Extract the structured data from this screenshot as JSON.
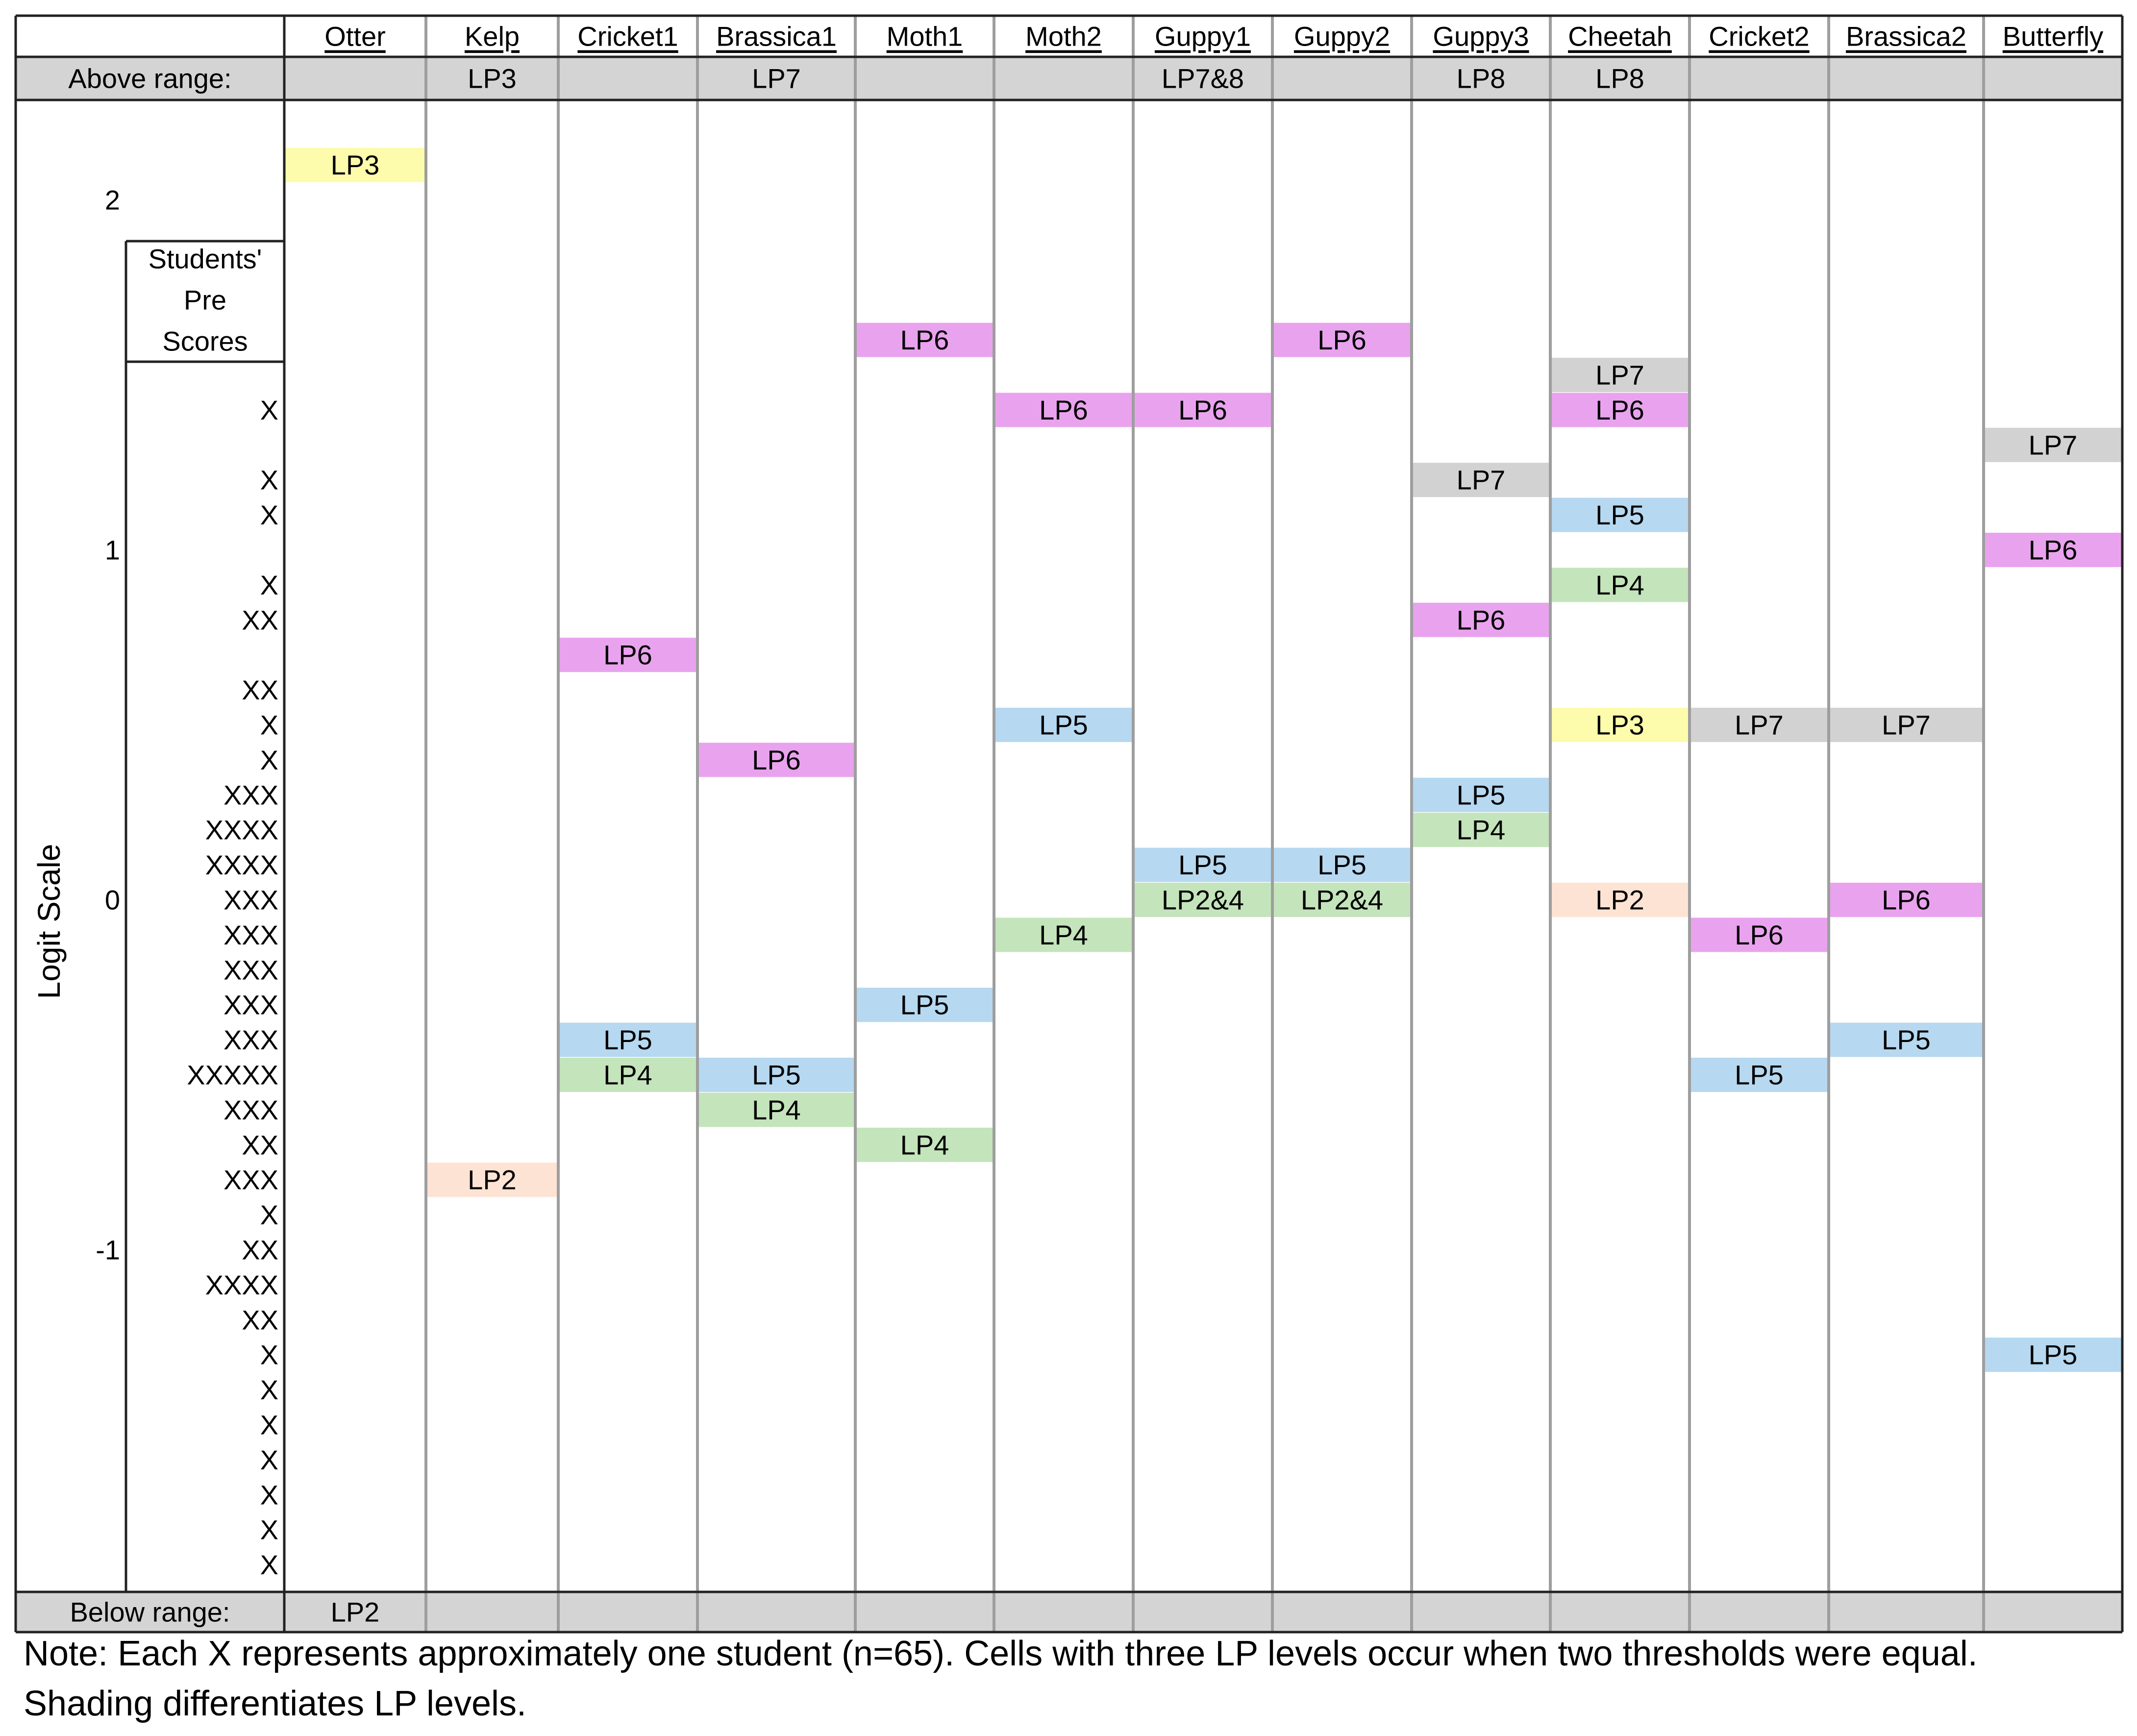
{
  "chart_data": {
    "type": "table",
    "yaxis_label": "Logit Scale",
    "ytick_values": [
      2,
      1,
      0,
      -1
    ],
    "ytick_labels": [
      "2",
      "1",
      "0",
      "-1"
    ],
    "items": [
      "Otter",
      "Kelp",
      "Cricket1",
      "Brassica1",
      "Moth1",
      "Moth2",
      "Guppy1",
      "Guppy2",
      "Guppy3",
      "Cheetah",
      "Cricket2",
      "Brassica2",
      "Butterfly"
    ],
    "above_label": "Above range:",
    "above_range": [
      "",
      "LP3",
      "",
      "LP7",
      "",
      "",
      "LP7&8",
      "",
      "LP8",
      "LP8",
      "",
      "",
      ""
    ],
    "below_label": "Below range:",
    "below_range": [
      "LP2",
      "",
      "",
      "",
      "",
      "",
      "",
      "",
      "",
      "",
      "",
      "",
      ""
    ],
    "students_label_lines": [
      "Students'",
      "Pre",
      "Scores"
    ],
    "students": [
      {
        "logit": 1.4,
        "marks": "X"
      },
      {
        "logit": 1.2,
        "marks": "X"
      },
      {
        "logit": 1.1,
        "marks": "X"
      },
      {
        "logit": 0.9,
        "marks": "X"
      },
      {
        "logit": 0.8,
        "marks": "XX"
      },
      {
        "logit": 0.6,
        "marks": "XX"
      },
      {
        "logit": 0.5,
        "marks": "X"
      },
      {
        "logit": 0.4,
        "marks": "X"
      },
      {
        "logit": 0.3,
        "marks": "XXX"
      },
      {
        "logit": 0.2,
        "marks": "XXXX"
      },
      {
        "logit": 0.1,
        "marks": "XXXX"
      },
      {
        "logit": 0.0,
        "marks": "XXX"
      },
      {
        "logit": -0.1,
        "marks": "XXX"
      },
      {
        "logit": -0.2,
        "marks": "XXX"
      },
      {
        "logit": -0.3,
        "marks": "XXX"
      },
      {
        "logit": -0.4,
        "marks": "XXX"
      },
      {
        "logit": -0.5,
        "marks": "XXXXX"
      },
      {
        "logit": -0.6,
        "marks": "XXX"
      },
      {
        "logit": -0.7,
        "marks": "XX"
      },
      {
        "logit": -0.8,
        "marks": "XXX"
      },
      {
        "logit": -0.9,
        "marks": "X"
      },
      {
        "logit": -1.0,
        "marks": "XX"
      },
      {
        "logit": -1.1,
        "marks": "XXXX"
      },
      {
        "logit": -1.2,
        "marks": "XX"
      },
      {
        "logit": -1.3,
        "marks": "X"
      },
      {
        "logit": -1.4,
        "marks": "X"
      },
      {
        "logit": -1.5,
        "marks": "X"
      },
      {
        "logit": -1.6,
        "marks": "X"
      },
      {
        "logit": -1.7,
        "marks": "X"
      },
      {
        "logit": -1.8,
        "marks": "X"
      },
      {
        "logit": -1.9,
        "marks": "X"
      }
    ],
    "thresholds": [
      {
        "item": "Otter",
        "label": "LP3",
        "logit": 2.1
      },
      {
        "item": "Kelp",
        "label": "LP2",
        "logit": -0.8
      },
      {
        "item": "Cricket1",
        "label": "LP6",
        "logit": 0.7
      },
      {
        "item": "Cricket1",
        "label": "LP5",
        "logit": -0.4
      },
      {
        "item": "Cricket1",
        "label": "LP4",
        "logit": -0.5
      },
      {
        "item": "Brassica1",
        "label": "LP6",
        "logit": 0.4
      },
      {
        "item": "Brassica1",
        "label": "LP5",
        "logit": -0.5
      },
      {
        "item": "Brassica1",
        "label": "LP4",
        "logit": -0.6
      },
      {
        "item": "Moth1",
        "label": "LP6",
        "logit": 1.6
      },
      {
        "item": "Moth1",
        "label": "LP5",
        "logit": -0.3
      },
      {
        "item": "Moth1",
        "label": "LP4",
        "logit": -0.7
      },
      {
        "item": "Moth2",
        "label": "LP6",
        "logit": 1.4
      },
      {
        "item": "Moth2",
        "label": "LP5",
        "logit": 0.5
      },
      {
        "item": "Moth2",
        "label": "LP4",
        "logit": -0.1
      },
      {
        "item": "Guppy1",
        "label": "LP6",
        "logit": 1.4
      },
      {
        "item": "Guppy1",
        "label": "LP5",
        "logit": 0.1
      },
      {
        "item": "Guppy1",
        "label": "LP2&4",
        "logit": 0.0
      },
      {
        "item": "Guppy2",
        "label": "LP6",
        "logit": 1.6
      },
      {
        "item": "Guppy2",
        "label": "LP5",
        "logit": 0.1
      },
      {
        "item": "Guppy2",
        "label": "LP2&4",
        "logit": 0.0
      },
      {
        "item": "Guppy3",
        "label": "LP7",
        "logit": 1.2
      },
      {
        "item": "Guppy3",
        "label": "LP6",
        "logit": 0.8
      },
      {
        "item": "Guppy3",
        "label": "LP5",
        "logit": 0.3
      },
      {
        "item": "Guppy3",
        "label": "LP4",
        "logit": 0.2
      },
      {
        "item": "Cheetah",
        "label": "LP7",
        "logit": 1.5
      },
      {
        "item": "Cheetah",
        "label": "LP6",
        "logit": 1.4
      },
      {
        "item": "Cheetah",
        "label": "LP5",
        "logit": 1.1
      },
      {
        "item": "Cheetah",
        "label": "LP4",
        "logit": 0.9
      },
      {
        "item": "Cheetah",
        "label": "LP3",
        "logit": 0.5
      },
      {
        "item": "Cheetah",
        "label": "LP2",
        "logit": 0.0
      },
      {
        "item": "Cricket2",
        "label": "LP7",
        "logit": 0.5
      },
      {
        "item": "Cricket2",
        "label": "LP6",
        "logit": -0.1
      },
      {
        "item": "Cricket2",
        "label": "LP5",
        "logit": -0.5
      },
      {
        "item": "Brassica2",
        "label": "LP7",
        "logit": 0.5
      },
      {
        "item": "Brassica2",
        "label": "LP6",
        "logit": 0.0
      },
      {
        "item": "Brassica2",
        "label": "LP5",
        "logit": -0.4
      },
      {
        "item": "Butterfly",
        "label": "LP7",
        "logit": 1.3
      },
      {
        "item": "Butterfly",
        "label": "LP6",
        "logit": 1.0
      },
      {
        "item": "Butterfly",
        "label": "LP5",
        "logit": -1.3
      }
    ],
    "level_colors": {
      "LP2": "#fde3d4",
      "LP2&4": "#c4e4bb",
      "LP3": "#fdfbac",
      "LP4": "#c4e4bb",
      "LP5": "#b6d8f0",
      "LP6": "#e9a3ee",
      "LP7": "#d2d2d2"
    },
    "band_color": "#d4d4d4"
  },
  "note": {
    "line1": "Note: Each X represents approximately one student (n=65). Cells with three LP levels occur when two thresholds were equal.",
    "line2": "Shading differentiates LP levels."
  }
}
